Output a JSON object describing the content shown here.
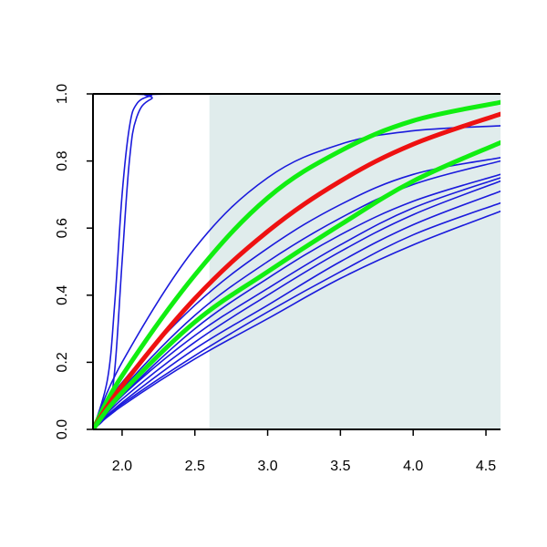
{
  "chart_data": {
    "type": "line",
    "title": "",
    "xlabel": "",
    "ylabel": "",
    "xlim": [
      1.8,
      4.6
    ],
    "ylim": [
      0,
      1
    ],
    "grid": false,
    "legend": "none",
    "x_ticks": [
      {
        "value": 2.0,
        "label": "2.0"
      },
      {
        "value": 2.5,
        "label": "2.5"
      },
      {
        "value": 3.0,
        "label": "3.0"
      },
      {
        "value": 3.5,
        "label": "3.5"
      },
      {
        "value": 4.0,
        "label": "4.0"
      },
      {
        "value": 4.5,
        "label": "4.5"
      }
    ],
    "y_ticks": [
      {
        "value": 0.0,
        "label": "0.0"
      },
      {
        "value": 0.2,
        "label": "0.2"
      },
      {
        "value": 0.4,
        "label": "0.4"
      },
      {
        "value": 0.6,
        "label": "0.6"
      },
      {
        "value": 0.8,
        "label": "0.8"
      },
      {
        "value": 1.0,
        "label": "1.0"
      }
    ],
    "shaded_region": {
      "x_from": 2.6,
      "x_to": 4.6,
      "color": "#e0ecec"
    },
    "x_start": 1.8,
    "colors": {
      "series": "#1a1adc",
      "highlight": "#ee1111",
      "bound": "#11ee11",
      "frame": "#000000"
    },
    "series": [
      {
        "kind": "blue",
        "points": [
          [
            1.8,
            0
          ],
          [
            1.9,
            0.15
          ],
          [
            1.95,
            0.38
          ],
          [
            2.0,
            0.7
          ],
          [
            2.05,
            0.9
          ],
          [
            2.1,
            0.97
          ],
          [
            2.2,
            0.995
          ],
          [
            2.3,
            1.0
          ],
          [
            4.6,
            1.0
          ]
        ]
      },
      {
        "kind": "blue",
        "points": [
          [
            1.8,
            0
          ],
          [
            1.9,
            0.05
          ],
          [
            1.95,
            0.18
          ],
          [
            2.0,
            0.5
          ],
          [
            2.05,
            0.8
          ],
          [
            2.1,
            0.93
          ],
          [
            2.2,
            0.985
          ],
          [
            2.4,
            1.0
          ],
          [
            4.6,
            1.0
          ]
        ]
      },
      {
        "kind": "blue",
        "points": [
          [
            1.8,
            0
          ],
          [
            2.0,
            0.2
          ],
          [
            2.5,
            0.54
          ],
          [
            3.0,
            0.75
          ],
          [
            3.5,
            0.85
          ],
          [
            4.0,
            0.89
          ],
          [
            4.6,
            0.905
          ]
        ]
      },
      {
        "kind": "blue",
        "points": [
          [
            1.8,
            0
          ],
          [
            2.0,
            0.14
          ],
          [
            2.5,
            0.37
          ],
          [
            3.0,
            0.54
          ],
          [
            3.5,
            0.67
          ],
          [
            4.0,
            0.76
          ],
          [
            4.6,
            0.81
          ]
        ]
      },
      {
        "kind": "blue",
        "points": [
          [
            1.8,
            0
          ],
          [
            2.0,
            0.12
          ],
          [
            2.5,
            0.34
          ],
          [
            3.0,
            0.5
          ],
          [
            3.5,
            0.63
          ],
          [
            4.0,
            0.73
          ],
          [
            4.6,
            0.8
          ]
        ]
      },
      {
        "kind": "blue",
        "points": [
          [
            1.8,
            0
          ],
          [
            2.0,
            0.1
          ],
          [
            2.5,
            0.3
          ],
          [
            3.0,
            0.45
          ],
          [
            3.5,
            0.58
          ],
          [
            4.0,
            0.68
          ],
          [
            4.6,
            0.76
          ]
        ]
      },
      {
        "kind": "blue",
        "points": [
          [
            1.8,
            0
          ],
          [
            2.0,
            0.1
          ],
          [
            2.5,
            0.28
          ],
          [
            3.0,
            0.42
          ],
          [
            3.5,
            0.55
          ],
          [
            4.0,
            0.66
          ],
          [
            4.6,
            0.75
          ]
        ]
      },
      {
        "kind": "blue",
        "points": [
          [
            1.8,
            0
          ],
          [
            2.0,
            0.09
          ],
          [
            2.5,
            0.26
          ],
          [
            3.0,
            0.4
          ],
          [
            3.5,
            0.53
          ],
          [
            4.0,
            0.64
          ],
          [
            4.6,
            0.74
          ]
        ]
      },
      {
        "kind": "blue",
        "points": [
          [
            1.8,
            0
          ],
          [
            2.0,
            0.08
          ],
          [
            2.5,
            0.24
          ],
          [
            3.0,
            0.37
          ],
          [
            3.5,
            0.5
          ],
          [
            4.0,
            0.61
          ],
          [
            4.6,
            0.71
          ]
        ]
      },
      {
        "kind": "blue",
        "points": [
          [
            1.8,
            0
          ],
          [
            2.0,
            0.075
          ],
          [
            2.5,
            0.22
          ],
          [
            3.0,
            0.35
          ],
          [
            3.5,
            0.47
          ],
          [
            4.0,
            0.58
          ],
          [
            4.6,
            0.675
          ]
        ]
      },
      {
        "kind": "blue",
        "points": [
          [
            1.8,
            0
          ],
          [
            2.0,
            0.07
          ],
          [
            2.5,
            0.21
          ],
          [
            3.0,
            0.33
          ],
          [
            3.5,
            0.45
          ],
          [
            4.0,
            0.55
          ],
          [
            4.6,
            0.65
          ]
        ]
      },
      {
        "kind": "green",
        "points": [
          [
            1.8,
            0
          ],
          [
            2.0,
            0.16
          ],
          [
            2.5,
            0.46
          ],
          [
            3.0,
            0.69
          ],
          [
            3.5,
            0.83
          ],
          [
            4.0,
            0.92
          ],
          [
            4.6,
            0.975
          ]
        ]
      },
      {
        "kind": "red",
        "points": [
          [
            1.8,
            0
          ],
          [
            2.0,
            0.13
          ],
          [
            2.5,
            0.39
          ],
          [
            3.0,
            0.59
          ],
          [
            3.5,
            0.74
          ],
          [
            4.0,
            0.85
          ],
          [
            4.6,
            0.94
          ]
        ]
      },
      {
        "kind": "green",
        "points": [
          [
            1.8,
            0
          ],
          [
            2.0,
            0.11
          ],
          [
            2.5,
            0.32
          ],
          [
            3.0,
            0.47
          ],
          [
            3.5,
            0.61
          ],
          [
            4.0,
            0.74
          ],
          [
            4.6,
            0.855
          ]
        ]
      }
    ]
  }
}
